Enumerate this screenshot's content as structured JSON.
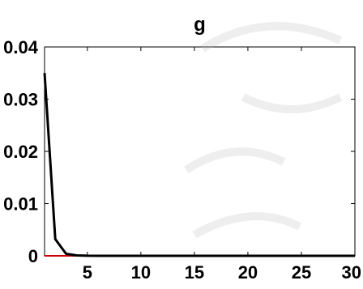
{
  "chart_data": {
    "type": "line",
    "title": "g",
    "xlabel": "",
    "ylabel": "",
    "xlim": [
      1,
      30
    ],
    "ylim": [
      0,
      0.04
    ],
    "x_ticks": [
      5,
      10,
      15,
      20,
      25,
      30
    ],
    "x_tick_labels": [
      "5",
      "10",
      "15",
      "20",
      "25",
      "30"
    ],
    "y_ticks": [
      0,
      0.01,
      0.02,
      0.03,
      0.04
    ],
    "y_tick_labels": [
      "0",
      "0.01",
      "0.02",
      "0.03",
      "0.04"
    ],
    "grid": false,
    "series": [
      {
        "color": "#000000",
        "x": [
          1,
          2,
          3,
          4,
          5,
          6,
          7,
          8,
          9,
          10,
          11,
          12,
          13,
          14,
          15,
          16,
          17,
          18,
          19,
          20,
          21,
          22,
          23,
          24,
          25,
          26,
          27,
          28,
          29,
          30
        ],
        "values": [
          0.035,
          0.0032,
          0.0004,
          8e-05,
          2e-05,
          1e-05,
          0,
          0,
          0,
          0,
          0,
          0,
          0,
          0,
          0,
          0,
          0,
          0,
          0,
          0,
          0,
          0,
          0,
          0,
          0,
          0,
          0,
          0,
          0,
          0
        ]
      },
      {
        "color": "#cc0000",
        "x": [
          1,
          30
        ],
        "values": [
          0,
          0
        ]
      }
    ]
  }
}
